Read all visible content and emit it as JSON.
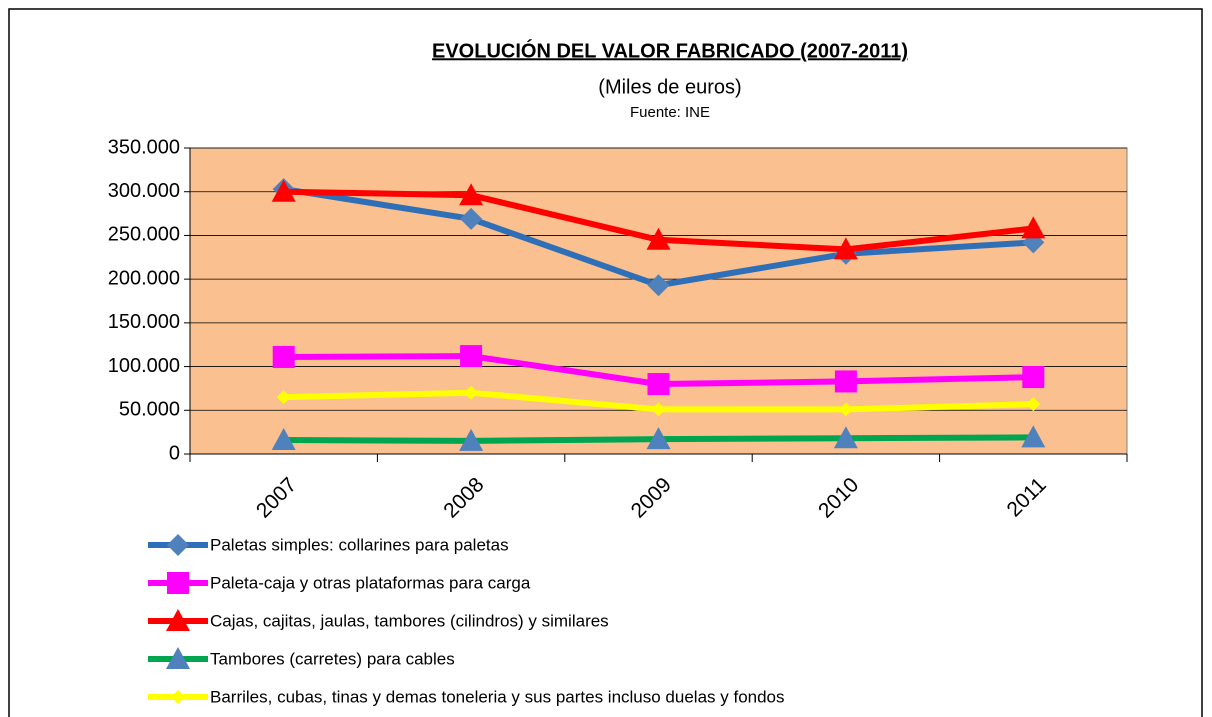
{
  "chart_data": {
    "type": "line",
    "title": "EVOLUCIÓN DEL VALOR FABRICADO (2007-2011)",
    "subtitle": "(Miles de euros)",
    "source": "Fuente: INE",
    "categories": [
      "2007",
      "2008",
      "2009",
      "2010",
      "2011"
    ],
    "ylim": [
      0,
      350000
    ],
    "yticks": [
      0,
      {
        "value": 50000,
        "label": "50.000"
      },
      {
        "value": 100000,
        "label": "100.000"
      },
      {
        "value": 150000,
        "label": "150.000"
      },
      {
        "value": 200000,
        "label": "200.000"
      },
      {
        "value": 250000,
        "label": "250.000"
      },
      {
        "value": 300000,
        "label": "300.000"
      },
      {
        "value": 350000,
        "label": "350.000"
      }
    ],
    "grid": true,
    "plot_background": "#fac090",
    "legend": "bottom",
    "series": [
      {
        "name": "Paletas simples: collarines para paletas",
        "color": "#2f6fb7",
        "marker": "diamond",
        "marker_color": "#4f81bd",
        "values": [
          303000,
          269000,
          193000,
          229000,
          242000
        ]
      },
      {
        "name": "Paleta-caja y otras plataformas para carga",
        "color": "#ff00ff",
        "marker": "square",
        "marker_color": "#ff00ff",
        "values": [
          111000,
          112000,
          80000,
          83000,
          88000
        ]
      },
      {
        "name": "Cajas, cajitas, jaulas, tambores (cilindros) y similares",
        "color": "#ff0000",
        "marker": "triangle",
        "marker_color": "#ff0000",
        "values": [
          300000,
          296000,
          245000,
          234000,
          258000
        ]
      },
      {
        "name": "Tambores (carretes) para cables",
        "color": "#00a550",
        "marker": "triangle",
        "marker_color": "#4f81bd",
        "values": [
          16000,
          15000,
          17000,
          18000,
          19000
        ]
      },
      {
        "name": "Barriles, cubas, tinas y demas toneleria y sus partes incluso duelas y fondos",
        "color": "#ffff00",
        "marker": "diamond-small",
        "marker_color": "#ffff00",
        "values": [
          65000,
          70000,
          51000,
          51000,
          57000
        ]
      }
    ]
  }
}
